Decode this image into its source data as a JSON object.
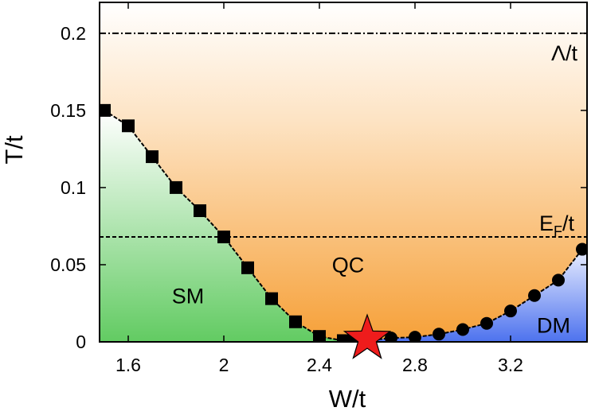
{
  "chart_data": {
    "type": "scatter",
    "title": "",
    "xlabel": "W/t",
    "ylabel": "T/t",
    "xlim": [
      1.48,
      3.52
    ],
    "ylim": [
      0,
      0.22
    ],
    "xticks": [
      1.6,
      2,
      2.4,
      2.8,
      3.2
    ],
    "xtick_labels": [
      "1.6",
      "2",
      "2.4",
      "2.8",
      "3.2"
    ],
    "yticks": [
      0,
      0.05,
      0.1,
      0.15,
      0.2
    ],
    "ytick_labels": [
      "0",
      "0.05",
      "0.1",
      "0.15",
      "0.2"
    ],
    "grid": false,
    "series": [
      {
        "marker": "square",
        "color": "#000000",
        "x": [
          1.5,
          1.6,
          1.7,
          1.8,
          1.9,
          2.0,
          2.1,
          2.2,
          2.3,
          2.4,
          2.5,
          2.55
        ],
        "y": [
          0.15,
          0.14,
          0.12,
          0.1,
          0.085,
          0.068,
          0.048,
          0.028,
          0.013,
          0.0035,
          0.0008,
          0.0002
        ]
      },
      {
        "marker": "circle",
        "color": "#000000",
        "x": [
          2.6,
          2.7,
          2.8,
          2.9,
          3.0,
          3.1,
          3.2,
          3.3,
          3.4,
          3.5
        ],
        "y": [
          0.0008,
          0.0025,
          0.003,
          0.005,
          0.008,
          0.012,
          0.02,
          0.03,
          0.04,
          0.06
        ]
      }
    ],
    "critical_point": {
      "x": 2.6,
      "y": 0.002,
      "marker": "star",
      "color": "#ee1c1c"
    },
    "reference_lines": [
      {
        "y": 0.2,
        "label": "Λ/t",
        "style": "dash-dot"
      },
      {
        "y": 0.068,
        "label": "E_F/t",
        "label_main": "E",
        "label_sub": "F",
        "label_rest": "/t",
        "style": "dashed"
      }
    ],
    "regions": [
      {
        "label": "SM",
        "color": "#6ccf6c"
      },
      {
        "label": "QC",
        "color": "#f6a03a"
      },
      {
        "label": "DM",
        "color": "#5577ee"
      }
    ]
  }
}
